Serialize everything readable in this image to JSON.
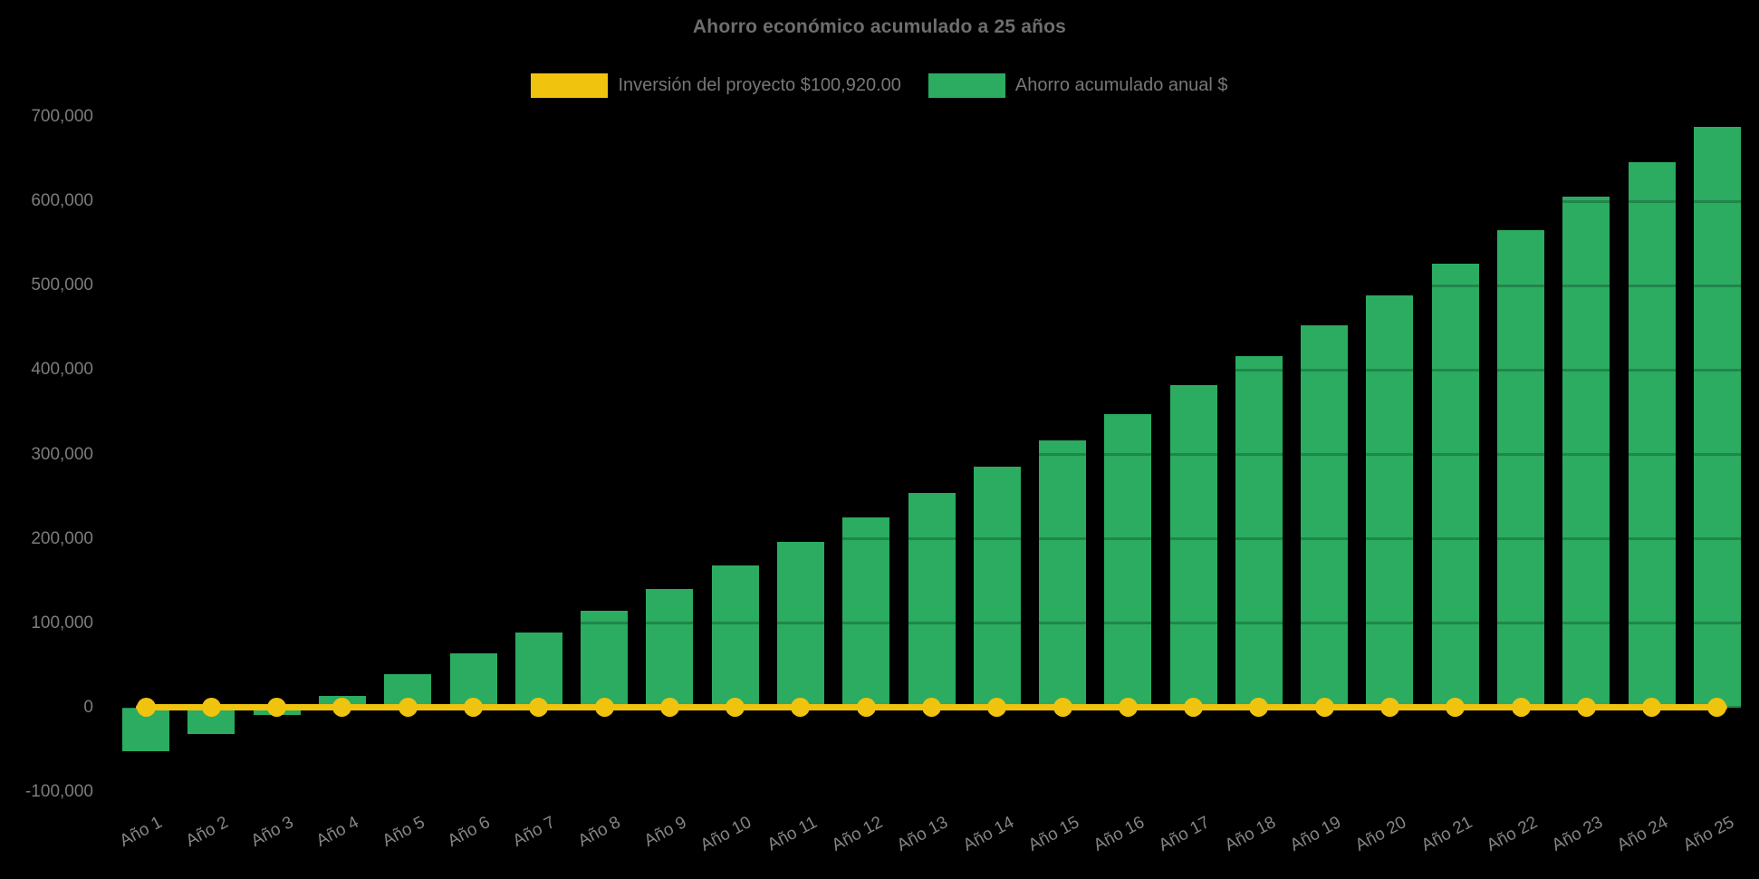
{
  "chart_data": {
    "type": "bar",
    "title": "Ahorro económico acumulado a 25 años",
    "categories": [
      "Año 1",
      "Año 2",
      "Año 3",
      "Año 4",
      "Año 5",
      "Año 6",
      "Año 7",
      "Año 8",
      "Año 9",
      "Año 10",
      "Año 11",
      "Año 12",
      "Año 13",
      "Año 14",
      "Año 15",
      "Año 16",
      "Año 17",
      "Año 18",
      "Año 19",
      "Año 20",
      "Año 21",
      "Año 22",
      "Año 23",
      "Año 24",
      "Año 25"
    ],
    "series": [
      {
        "name": "Inversión del proyecto $100,920.00",
        "type": "line",
        "color": "#F0C30F",
        "values": [
          0,
          0,
          0,
          0,
          0,
          0,
          0,
          0,
          0,
          0,
          0,
          0,
          0,
          0,
          0,
          0,
          0,
          0,
          0,
          0,
          0,
          0,
          0,
          0,
          0
        ]
      },
      {
        "name": "Ahorro acumulado anual $",
        "type": "bar",
        "color": "#2BAC61",
        "values": [
          -52000,
          -31000,
          -9000,
          14000,
          40000,
          64000,
          89000,
          115000,
          141000,
          168000,
          196000,
          225000,
          254000,
          285000,
          317000,
          348000,
          382000,
          416000,
          453000,
          488000,
          526000,
          566000,
          605000,
          646000,
          688000
        ]
      }
    ],
    "ylim": [
      -100000,
      700000
    ],
    "ytick_values": [
      700000,
      600000,
      500000,
      400000,
      300000,
      200000,
      100000,
      0,
      -100000
    ],
    "ytick_labels": [
      "700,000",
      "600,000",
      "500,000",
      "400,000",
      "300,000",
      "200,000",
      "100,000",
      "0",
      "-100,000"
    ],
    "legend_position": "top",
    "grid": "off",
    "background": "#000000",
    "text_color": "#7c7c7c"
  }
}
